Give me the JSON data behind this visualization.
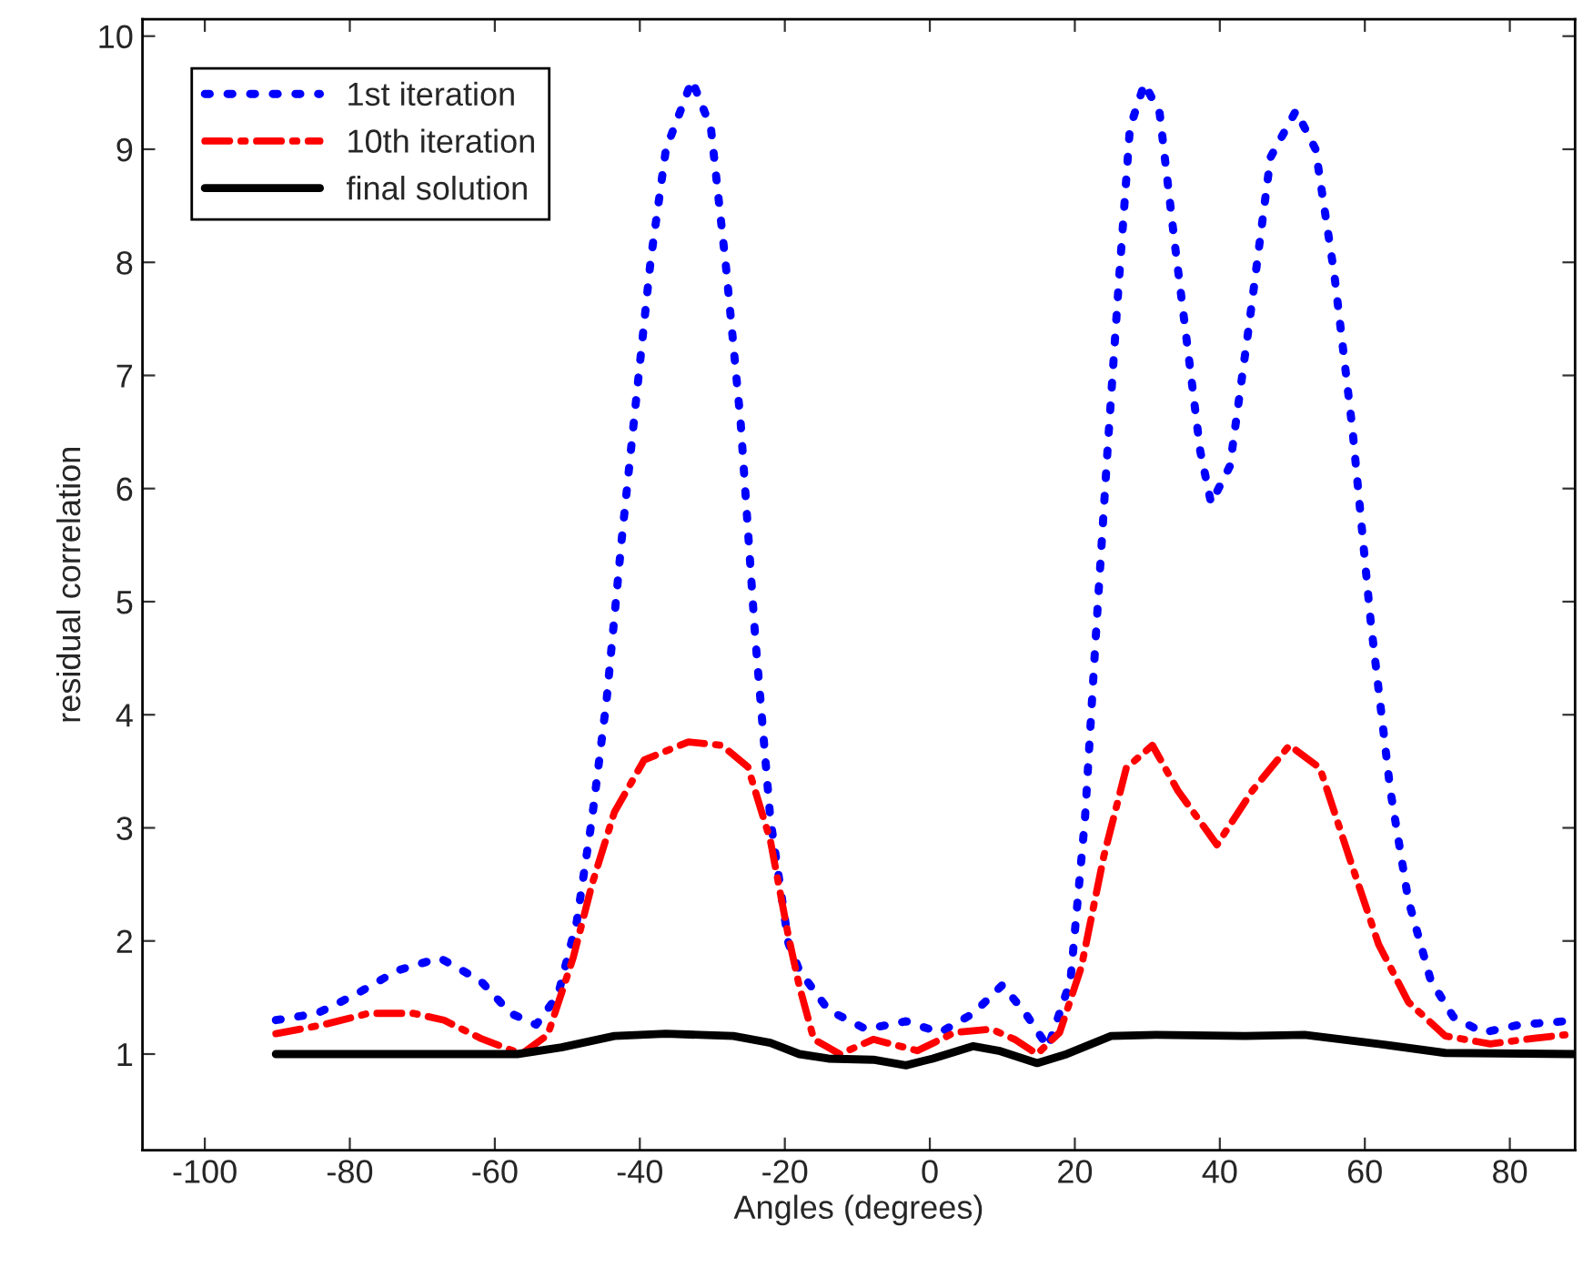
{
  "chart_data": {
    "type": "line",
    "xlabel": "Angles (degrees)",
    "ylabel": "residual correlation",
    "xlim": [
      -108.6,
      89
    ],
    "ylim": [
      0.15,
      10.15
    ],
    "xticks": [
      -100,
      -80,
      -60,
      -40,
      -20,
      0,
      20,
      40,
      60,
      80
    ],
    "yticks": [
      1,
      2,
      3,
      4,
      5,
      6,
      7,
      8,
      9,
      10
    ],
    "grid": false,
    "legend": "top left",
    "marker": "none",
    "series": [
      {
        "name": "1st iteration",
        "color": "#0000ff",
        "line_style": "dotted",
        "x": [
          -90.2,
          -84.5,
          -79.4,
          -73.4,
          -67.6,
          -62,
          -57.8,
          -54.3,
          -51.3,
          -48.7,
          -46.6,
          -44.6,
          -42.5,
          -40.5,
          -38.5,
          -36.4,
          -32.8,
          -30.2,
          -28.1,
          -26.1,
          -24.1,
          -22,
          -19.5,
          -18,
          -14,
          -8.8,
          -3.3,
          1.4,
          6,
          10,
          13.2,
          16.3,
          19.4,
          21.4,
          22.9,
          24.5,
          26,
          27.6,
          29.6,
          31.7,
          33.7,
          35.7,
          37.3,
          38.8,
          41.4,
          44,
          47,
          50.5,
          53.2,
          55.8,
          58.3,
          60.8,
          63.5,
          66,
          69.1,
          72.2,
          76.3,
          81.4,
          87.6
        ],
        "values": [
          1.3,
          1.36,
          1.52,
          1.74,
          1.85,
          1.65,
          1.36,
          1.26,
          1.52,
          2.17,
          3.08,
          4.12,
          5.55,
          6.79,
          8.02,
          9.0,
          9.61,
          9.19,
          7.95,
          6.59,
          4.7,
          3.08,
          1.98,
          1.74,
          1.39,
          1.22,
          1.29,
          1.19,
          1.36,
          1.61,
          1.36,
          1.06,
          1.65,
          3.08,
          4.7,
          6.33,
          7.76,
          9.19,
          9.58,
          9.32,
          8.21,
          7.17,
          6.33,
          5.87,
          6.2,
          7.43,
          8.93,
          9.34,
          9.0,
          7.89,
          6.52,
          4.83,
          3.34,
          2.36,
          1.65,
          1.33,
          1.19,
          1.26,
          1.29
        ]
      },
      {
        "name": "10th iteration",
        "color": "#ff0000",
        "line_style": "dashdot",
        "x": [
          -90.2,
          -83.6,
          -77.4,
          -71.2,
          -67,
          -62,
          -56.3,
          -52.7,
          -49.2,
          -46.6,
          -43.5,
          -39.4,
          -33.3,
          -28.7,
          -25.1,
          -22,
          -19.5,
          -18,
          -16,
          -12.4,
          -7.8,
          -1.7,
          3.4,
          8.5,
          11.7,
          14.8,
          17.9,
          20.9,
          24,
          27.1,
          30.7,
          34.2,
          39.6,
          44.5,
          49.6,
          53.8,
          57.8,
          61.9,
          66,
          71.1,
          77.3,
          83.4,
          87.6
        ],
        "values": [
          1.18,
          1.26,
          1.36,
          1.36,
          1.3,
          1.14,
          1.0,
          1.17,
          1.85,
          2.5,
          3.14,
          3.6,
          3.76,
          3.73,
          3.54,
          2.89,
          2.04,
          1.6,
          1.13,
          1.0,
          1.13,
          1.03,
          1.19,
          1.22,
          1.13,
          1.0,
          1.19,
          1.77,
          2.75,
          3.53,
          3.73,
          3.33,
          2.85,
          3.33,
          3.73,
          3.53,
          2.75,
          1.97,
          1.46,
          1.16,
          1.09,
          1.14,
          1.17
        ]
      },
      {
        "name": "final solution",
        "color": "#000000",
        "line_style": "solid",
        "x": [
          -90.2,
          -73.4,
          -56.9,
          -50.8,
          -43.5,
          -36.4,
          -27.1,
          -22,
          -18,
          -14,
          -7.8,
          -3.3,
          0.4,
          6,
          9.5,
          14.8,
          18.9,
          25,
          31.2,
          43.5,
          51.7,
          61.9,
          71.1,
          89
        ],
        "values": [
          1.0,
          1.0,
          1.0,
          1.06,
          1.16,
          1.18,
          1.16,
          1.1,
          1.0,
          0.96,
          0.95,
          0.9,
          0.96,
          1.07,
          1.03,
          0.92,
          1.0,
          1.16,
          1.17,
          1.16,
          1.17,
          1.09,
          1.01,
          1.0
        ]
      }
    ]
  }
}
